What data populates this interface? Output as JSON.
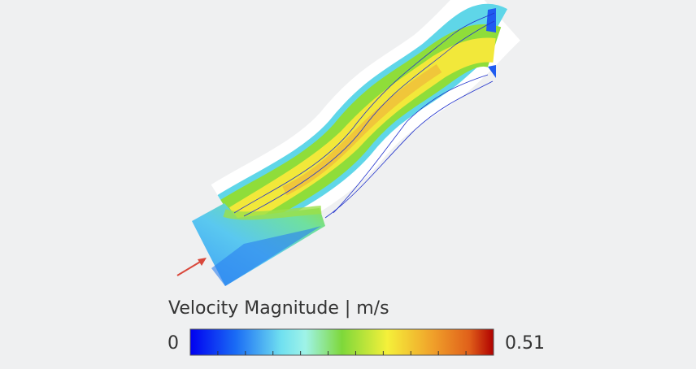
{
  "colorbar": {
    "title": "Velocity Magnitude | m/s",
    "min": 0,
    "max": 0.51
  }
}
